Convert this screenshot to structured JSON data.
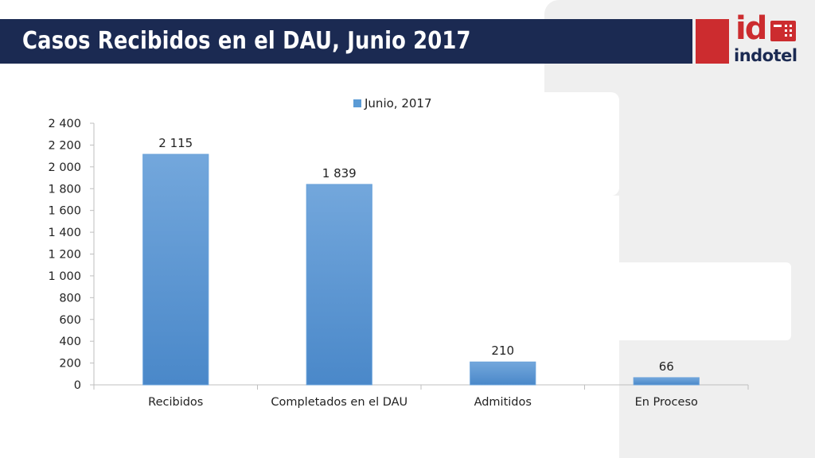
{
  "slide": {
    "title": "Casos Recibidos en el DAU, Junio 2017"
  },
  "logo": {
    "mark": "id",
    "wordmark": "indotel",
    "accent_color": "#cc2c2f",
    "navy_color": "#1b2a52"
  },
  "chart_data": {
    "type": "bar",
    "categories": [
      "Recibidos",
      "Completados en el DAU",
      "Admitidos",
      "En Proceso"
    ],
    "series": [
      {
        "name": "Junio, 2017",
        "values": [
          2115,
          1839,
          210,
          66
        ],
        "color": "#5b9bd5"
      }
    ],
    "data_labels": [
      "2 115",
      "1 839",
      "210",
      "66"
    ],
    "ylim": [
      0,
      2400
    ],
    "yticks": [
      0,
      200,
      400,
      600,
      800,
      1000,
      1200,
      1400,
      1600,
      1800,
      2000,
      2200,
      2400
    ],
    "ytick_labels": [
      "0",
      "200",
      "400",
      "600",
      "800",
      "1 000",
      "1 200",
      "1 400",
      "1 600",
      "1 800",
      "2 000",
      "2 200",
      "2 400"
    ],
    "legend_position": "top",
    "grid": false
  }
}
